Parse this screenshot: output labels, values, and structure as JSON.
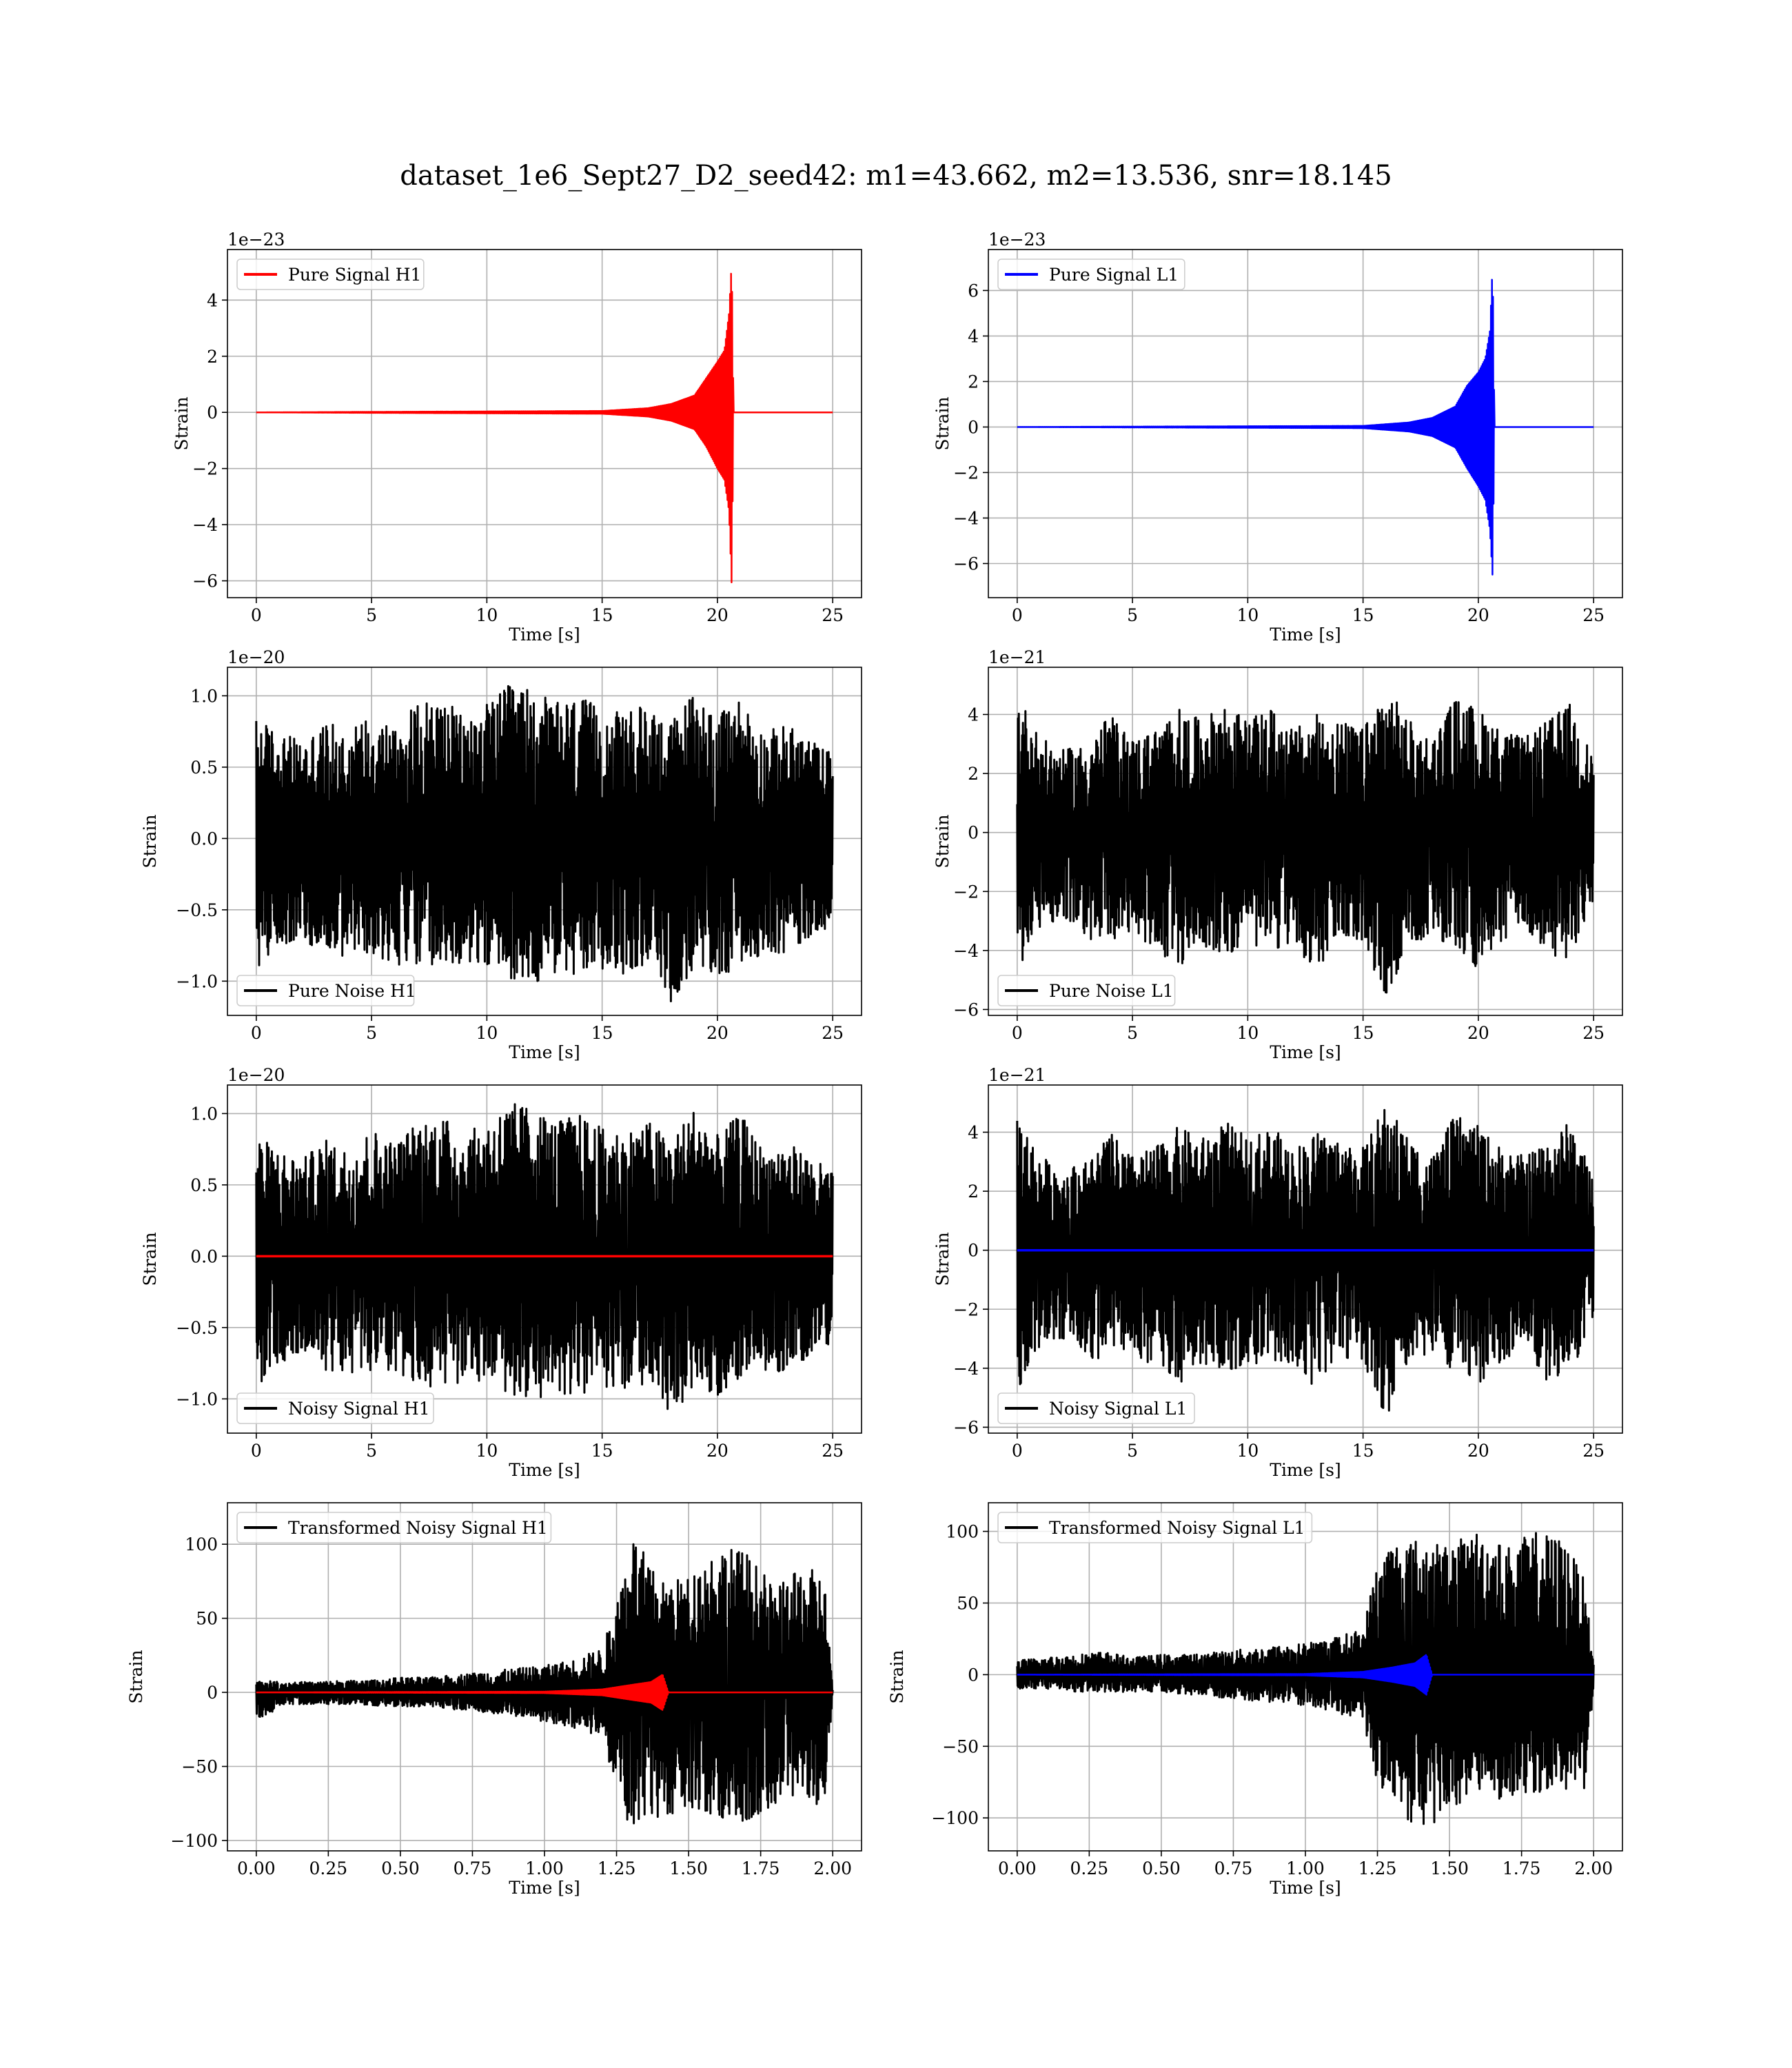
{
  "figure": {
    "suptitle": "dataset_1e6_Sept27_D2_seed42: m1=43.662, m2=13.536, snr=18.145"
  },
  "chart_data": [
    {
      "type": "line",
      "id": "pure-signal-h1",
      "legend": "top-left",
      "grid": true,
      "xlabel": "Time [s]",
      "ylabel": "Strain",
      "offset_text": "1e−23",
      "xlim": [
        -1.25,
        26.25
      ],
      "ylim": [
        -6.6,
        5.8
      ],
      "xticks": [
        0,
        5,
        10,
        15,
        20,
        25
      ],
      "xticklabels": [
        "0",
        "5",
        "10",
        "15",
        "20",
        "25"
      ],
      "yticks": [
        -6,
        -4,
        -2,
        0,
        2,
        4
      ],
      "yticklabels": [
        "−6",
        "−4",
        "−2",
        "0",
        "2",
        "4"
      ],
      "series": [
        {
          "name": "Pure Signal H1",
          "color": "#ff0000",
          "kind": "chirp",
          "x": [
            0,
            15.0,
            17.0,
            18.0,
            19.0,
            19.5,
            20.0,
            20.3,
            20.5,
            20.62,
            20.7,
            25
          ],
          "env_upper": [
            0,
            0.05,
            0.15,
            0.3,
            0.6,
            1.2,
            1.8,
            2.2,
            3.5,
            5.4,
            0,
            0
          ],
          "env_lower": [
            0,
            -0.05,
            -0.15,
            -0.3,
            -0.6,
            -1.2,
            -2.0,
            -2.4,
            -3.5,
            -6.2,
            0,
            0
          ]
        }
      ]
    },
    {
      "type": "line",
      "id": "pure-signal-l1",
      "legend": "top-left",
      "grid": true,
      "xlabel": "Time [s]",
      "ylabel": "Strain",
      "offset_text": "1e−23",
      "xlim": [
        -1.25,
        26.25
      ],
      "ylim": [
        -7.5,
        7.8
      ],
      "xticks": [
        0,
        5,
        10,
        15,
        20,
        25
      ],
      "xticklabels": [
        "0",
        "5",
        "10",
        "15",
        "20",
        "25"
      ],
      "yticks": [
        -6,
        -4,
        -2,
        0,
        2,
        4,
        6
      ],
      "yticklabels": [
        "−6",
        "−4",
        "−2",
        "0",
        "2",
        "4",
        "6"
      ],
      "series": [
        {
          "name": "Pure Signal L1",
          "color": "#0000ff",
          "kind": "chirp",
          "x": [
            0,
            15.0,
            17.0,
            18.0,
            19.0,
            19.5,
            20.0,
            20.3,
            20.5,
            20.62,
            20.7,
            25
          ],
          "env_upper": [
            0,
            0.05,
            0.2,
            0.4,
            0.9,
            1.8,
            2.4,
            3.0,
            4.2,
            7.2,
            0,
            0
          ],
          "env_lower": [
            0,
            -0.05,
            -0.2,
            -0.4,
            -0.9,
            -1.8,
            -2.6,
            -3.2,
            -4.5,
            -6.6,
            0,
            0
          ]
        }
      ]
    },
    {
      "type": "line",
      "id": "pure-noise-h1",
      "legend": "bottom-left",
      "grid": true,
      "xlabel": "Time [s]",
      "ylabel": "Strain",
      "offset_text": "1e−20",
      "xlim": [
        -1.25,
        26.25
      ],
      "ylim": [
        -1.24,
        1.2
      ],
      "xticks": [
        0,
        5,
        10,
        15,
        20,
        25
      ],
      "xticklabels": [
        "0",
        "5",
        "10",
        "15",
        "20",
        "25"
      ],
      "yticks": [
        -1.0,
        -0.5,
        0.0,
        0.5,
        1.0
      ],
      "yticklabels": [
        "−1.0",
        "−0.5",
        "0.0",
        "0.5",
        "1.0"
      ],
      "series": [
        {
          "name": "Pure Noise H1",
          "color": "#000000",
          "kind": "noise",
          "x": [
            0,
            1,
            2,
            3,
            4,
            5,
            6,
            7,
            8,
            9,
            10,
            11,
            12,
            13,
            14,
            15,
            16,
            17,
            18,
            19,
            20,
            21,
            22,
            23,
            24,
            25
          ],
          "env_upper": [
            0.85,
            0.75,
            0.68,
            0.82,
            0.75,
            0.9,
            0.8,
            0.95,
            1.0,
            0.85,
            0.95,
            1.08,
            1.05,
            0.95,
            1.0,
            0.9,
            0.88,
            0.95,
            0.82,
            1.05,
            0.85,
            1.0,
            0.75,
            0.8,
            0.7,
            0.6
          ],
          "env_lower": [
            -0.92,
            -0.75,
            -0.72,
            -0.8,
            -0.85,
            -0.8,
            -0.9,
            -0.88,
            -0.95,
            -0.88,
            -0.9,
            -0.98,
            -1.02,
            -0.95,
            -1.0,
            -0.92,
            -0.95,
            -0.88,
            -1.15,
            -0.95,
            -0.98,
            -0.9,
            -0.8,
            -0.82,
            -0.7,
            -0.6
          ]
        }
      ]
    },
    {
      "type": "line",
      "id": "pure-noise-l1",
      "legend": "bottom-left",
      "grid": true,
      "xlabel": "Time [s]",
      "ylabel": "Strain",
      "offset_text": "1e−21",
      "xlim": [
        -1.25,
        26.25
      ],
      "ylim": [
        -6.2,
        5.6
      ],
      "xticks": [
        0,
        5,
        10,
        15,
        20,
        25
      ],
      "xticklabels": [
        "0",
        "5",
        "10",
        "15",
        "20",
        "25"
      ],
      "yticks": [
        -6,
        -4,
        -2,
        0,
        2,
        4
      ],
      "yticklabels": [
        "−6",
        "−4",
        "−2",
        "0",
        "2",
        "4"
      ],
      "series": [
        {
          "name": "Pure Noise L1",
          "color": "#000000",
          "kind": "noise",
          "x": [
            0,
            1,
            2,
            3,
            4,
            5,
            6,
            7,
            8,
            9,
            10,
            11,
            12,
            13,
            14,
            15,
            16,
            17,
            18,
            19,
            20,
            21,
            22,
            23,
            24,
            25
          ],
          "env_upper": [
            4.8,
            3.2,
            2.8,
            3.0,
            4.0,
            3.2,
            3.5,
            4.2,
            3.8,
            4.4,
            3.8,
            4.2,
            3.5,
            4.0,
            3.8,
            3.5,
            5.0,
            3.8,
            3.2,
            4.6,
            4.2,
            3.5,
            3.2,
            3.8,
            4.4,
            2.5
          ],
          "env_lower": [
            -4.8,
            -3.2,
            -3.0,
            -3.6,
            -3.8,
            -3.5,
            -4.0,
            -4.6,
            -3.8,
            -4.2,
            -3.8,
            -4.0,
            -3.8,
            -4.8,
            -3.6,
            -3.8,
            -5.7,
            -3.8,
            -3.5,
            -4.2,
            -4.6,
            -3.8,
            -3.2,
            -4.5,
            -4.2,
            -2.5
          ]
        }
      ]
    },
    {
      "type": "line",
      "id": "noisy-signal-h1",
      "legend": "bottom-left",
      "grid": true,
      "xlabel": "Time [s]",
      "ylabel": "Strain",
      "offset_text": "1e−20",
      "xlim": [
        -1.25,
        26.25
      ],
      "ylim": [
        -1.24,
        1.2
      ],
      "xticks": [
        0,
        5,
        10,
        15,
        20,
        25
      ],
      "xticklabels": [
        "0",
        "5",
        "10",
        "15",
        "20",
        "25"
      ],
      "yticks": [
        -1.0,
        -0.5,
        0.0,
        0.5,
        1.0
      ],
      "yticklabels": [
        "−1.0",
        "−0.5",
        "0.0",
        "0.5",
        "1.0"
      ],
      "series": [
        {
          "name": "Noisy Signal H1",
          "color": "#000000",
          "kind": "noise",
          "x": [
            0,
            1,
            2,
            3,
            4,
            5,
            6,
            7,
            8,
            9,
            10,
            11,
            12,
            13,
            14,
            15,
            16,
            17,
            18,
            19,
            20,
            21,
            22,
            23,
            24,
            25
          ],
          "env_upper": [
            0.85,
            0.75,
            0.68,
            0.82,
            0.75,
            0.9,
            0.8,
            0.95,
            1.0,
            0.85,
            0.95,
            1.08,
            1.05,
            0.95,
            1.0,
            0.9,
            0.88,
            0.95,
            0.82,
            1.05,
            0.85,
            1.0,
            0.75,
            0.8,
            0.7,
            0.6
          ],
          "env_lower": [
            -0.92,
            -0.75,
            -0.72,
            -0.8,
            -0.85,
            -0.8,
            -0.9,
            -0.88,
            -0.95,
            -0.88,
            -0.9,
            -0.98,
            -1.02,
            -0.95,
            -1.0,
            -0.92,
            -0.95,
            -0.88,
            -1.15,
            -0.95,
            -0.98,
            -0.9,
            -0.8,
            -0.82,
            -0.7,
            -0.6
          ]
        },
        {
          "name": "",
          "color": "#ff0000",
          "kind": "flat",
          "x": [
            0,
            25
          ],
          "y": [
            0,
            0
          ]
        }
      ]
    },
    {
      "type": "line",
      "id": "noisy-signal-l1",
      "legend": "bottom-left",
      "grid": true,
      "xlabel": "Time [s]",
      "ylabel": "Strain",
      "offset_text": "1e−21",
      "xlim": [
        -1.25,
        26.25
      ],
      "ylim": [
        -6.2,
        5.6
      ],
      "xticks": [
        0,
        5,
        10,
        15,
        20,
        25
      ],
      "xticklabels": [
        "0",
        "5",
        "10",
        "15",
        "20",
        "25"
      ],
      "yticks": [
        -6,
        -4,
        -2,
        0,
        2,
        4
      ],
      "yticklabels": [
        "−6",
        "−4",
        "−2",
        "0",
        "2",
        "4"
      ],
      "series": [
        {
          "name": "Noisy Signal L1",
          "color": "#000000",
          "kind": "noise",
          "x": [
            0,
            1,
            2,
            3,
            4,
            5,
            6,
            7,
            8,
            9,
            10,
            11,
            12,
            13,
            14,
            15,
            16,
            17,
            18,
            19,
            20,
            21,
            22,
            23,
            24,
            25
          ],
          "env_upper": [
            4.8,
            3.2,
            2.8,
            3.0,
            4.0,
            3.2,
            3.5,
            4.2,
            3.8,
            4.4,
            3.8,
            4.2,
            3.5,
            4.0,
            3.8,
            3.5,
            5.0,
            3.8,
            3.2,
            4.6,
            4.2,
            3.5,
            3.2,
            3.8,
            4.4,
            2.5
          ],
          "env_lower": [
            -4.8,
            -3.2,
            -3.0,
            -3.6,
            -3.8,
            -3.5,
            -4.0,
            -4.6,
            -3.8,
            -4.2,
            -3.8,
            -4.0,
            -3.8,
            -4.8,
            -3.6,
            -3.8,
            -5.7,
            -3.8,
            -3.5,
            -4.2,
            -4.6,
            -3.8,
            -3.2,
            -4.5,
            -4.2,
            -2.5
          ]
        },
        {
          "name": "",
          "color": "#0000ff",
          "kind": "flat",
          "x": [
            0,
            25
          ],
          "y": [
            0,
            0
          ]
        }
      ]
    },
    {
      "type": "line",
      "id": "transformed-noisy-signal-h1",
      "legend": "top-left",
      "grid": true,
      "xlabel": "Time [s]",
      "ylabel": "Strain",
      "offset_text": "",
      "xlim": [
        -0.1,
        2.1
      ],
      "ylim": [
        -107,
        128
      ],
      "xticks": [
        0.0,
        0.25,
        0.5,
        0.75,
        1.0,
        1.25,
        1.5,
        1.75,
        2.0
      ],
      "xticklabels": [
        "0.00",
        "0.25",
        "0.50",
        "0.75",
        "1.00",
        "1.25",
        "1.50",
        "1.75",
        "2.00"
      ],
      "yticks": [
        -100,
        -50,
        0,
        50,
        100
      ],
      "yticklabels": [
        "−100",
        "−50",
        "0",
        "50",
        "100"
      ],
      "series": [
        {
          "name": "Transformed Noisy Signal H1",
          "color": "#000000",
          "kind": "noise",
          "x": [
            0,
            0.1,
            0.2,
            0.3,
            0.4,
            0.5,
            0.6,
            0.7,
            0.8,
            0.9,
            1.0,
            1.1,
            1.2,
            1.25,
            1.3,
            1.4,
            1.5,
            1.6,
            1.7,
            1.8,
            1.9,
            1.97,
            2.0
          ],
          "env_upper": [
            8,
            7,
            7,
            8,
            8,
            10,
            10,
            12,
            14,
            16,
            18,
            22,
            30,
            60,
            110,
            75,
            78,
            100,
            95,
            70,
            85,
            80,
            4
          ],
          "env_lower": [
            -20,
            -8,
            -8,
            -8,
            -9,
            -10,
            -10,
            -12,
            -14,
            -16,
            -20,
            -24,
            -30,
            -65,
            -100,
            -85,
            -78,
            -88,
            -90,
            -75,
            -70,
            -80,
            -4
          ]
        },
        {
          "name": "",
          "color": "#ff0000",
          "kind": "chirp",
          "x": [
            0,
            1.0,
            1.2,
            1.3,
            1.37,
            1.41,
            1.43,
            2.0
          ],
          "env_upper": [
            0,
            0.5,
            2,
            5,
            7,
            12,
            0,
            0
          ],
          "env_lower": [
            0,
            -0.5,
            -2,
            -5,
            -7,
            -12,
            0,
            0
          ]
        }
      ]
    },
    {
      "type": "line",
      "id": "transformed-noisy-signal-l1",
      "legend": "top-left",
      "grid": true,
      "xlabel": "Time [s]",
      "ylabel": "Strain",
      "offset_text": "",
      "xlim": [
        -0.1,
        2.1
      ],
      "ylim": [
        -123,
        120
      ],
      "xticks": [
        0.0,
        0.25,
        0.5,
        0.75,
        1.0,
        1.25,
        1.5,
        1.75,
        2.0
      ],
      "xticklabels": [
        "0.00",
        "0.25",
        "0.50",
        "0.75",
        "1.00",
        "1.25",
        "1.50",
        "1.75",
        "2.00"
      ],
      "yticks": [
        -100,
        -50,
        0,
        50,
        100
      ],
      "yticklabels": [
        "−100",
        "−50",
        "0",
        "50",
        "100"
      ],
      "series": [
        {
          "name": "Transformed Noisy Signal L1",
          "color": "#000000",
          "kind": "noise",
          "x": [
            0,
            0.1,
            0.2,
            0.3,
            0.4,
            0.5,
            0.6,
            0.7,
            0.8,
            0.9,
            1.0,
            1.1,
            1.2,
            1.25,
            1.3,
            1.4,
            1.5,
            1.6,
            1.7,
            1.8,
            1.9,
            1.97,
            2.0
          ],
          "env_upper": [
            10,
            12,
            14,
            16,
            12,
            14,
            14,
            16,
            18,
            20,
            22,
            26,
            32,
            80,
            95,
            95,
            90,
            102,
            90,
            100,
            95,
            65,
            8
          ],
          "env_lower": [
            -10,
            -10,
            -12,
            -12,
            -12,
            -12,
            -14,
            -16,
            -18,
            -20,
            -22,
            -26,
            -32,
            -80,
            -90,
            -112,
            -95,
            -80,
            -95,
            -82,
            -85,
            -80,
            -8
          ]
        },
        {
          "name": "",
          "color": "#0000ff",
          "kind": "chirp",
          "x": [
            0,
            1.0,
            1.2,
            1.3,
            1.38,
            1.42,
            1.44,
            2.0
          ],
          "env_upper": [
            0,
            0.5,
            2,
            5,
            8,
            14,
            0,
            0
          ],
          "env_lower": [
            0,
            -0.5,
            -2,
            -5,
            -8,
            -14,
            0,
            0
          ]
        }
      ]
    }
  ]
}
